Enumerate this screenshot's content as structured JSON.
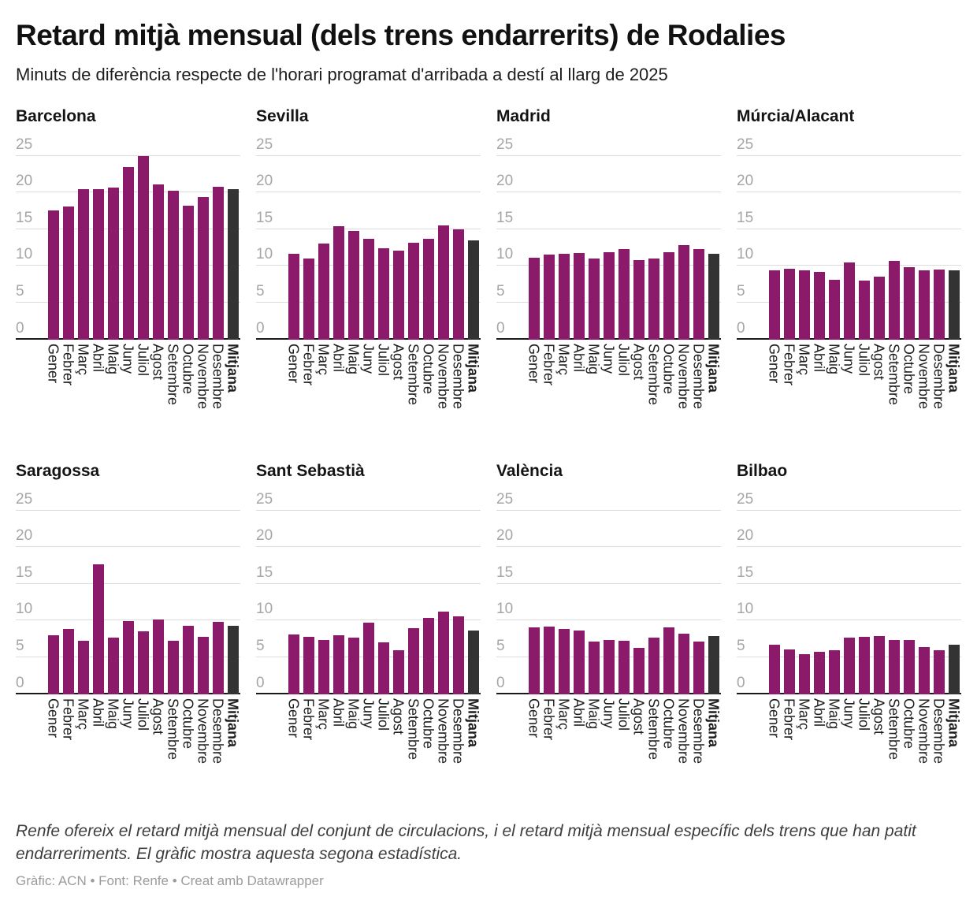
{
  "header": {
    "title": "Retard mitjà mensual (dels trens endarrerits) de Rodalies",
    "subtitle": "Minuts de diferència respecte de l'horari programat d'arribada a destí al llarg de 2025"
  },
  "chart_data": {
    "type": "bar",
    "layout": "small-multiples-2x4",
    "categories": [
      "Gener",
      "Febrer",
      "Març",
      "Abril",
      "Maig",
      "Juny",
      "Juliol",
      "Agost",
      "Setembre",
      "Octubre",
      "Novembre",
      "Desembre",
      "Mitjana"
    ],
    "ylim": [
      0,
      25
    ],
    "yticks": [
      0,
      5,
      10,
      15,
      20,
      25
    ],
    "grid": "horizontal",
    "legend": "none",
    "colors": {
      "bar": "#8c1a6a",
      "average_bar": "#333333",
      "gridline": "#dcdcdc",
      "baseline": "#1a1a1a",
      "ytick_label": "#a6a6a6"
    },
    "panels": [
      {
        "title": "Barcelona",
        "slug": "barcelona",
        "values": [
          17.6,
          18.1,
          20.5,
          20.5,
          20.7,
          23.5,
          24.9,
          21.1,
          20.2,
          18.2,
          19.4,
          20.8,
          20.4
        ]
      },
      {
        "title": "Sevilla",
        "slug": "sevilla",
        "values": [
          11.6,
          11.0,
          13.0,
          15.4,
          14.8,
          13.7,
          12.4,
          12.1,
          13.1,
          13.7,
          15.5,
          15.0,
          13.5
        ]
      },
      {
        "title": "Madrid",
        "slug": "madrid",
        "values": [
          11.1,
          11.5,
          11.6,
          11.8,
          11.0,
          11.9,
          12.3,
          10.8,
          11.0,
          11.9,
          12.8,
          12.3,
          11.7
        ]
      },
      {
        "title": "Múrcia/Alacant",
        "slug": "murcia-alacant",
        "values": [
          9.4,
          9.6,
          9.4,
          9.2,
          8.1,
          10.5,
          8.0,
          8.5,
          10.7,
          9.8,
          9.4,
          9.5,
          9.4
        ]
      },
      {
        "title": "Saragossa",
        "slug": "saragossa",
        "values": [
          8.0,
          8.9,
          7.3,
          17.7,
          7.7,
          9.9,
          8.5,
          10.1,
          7.2,
          9.3,
          7.8,
          9.8,
          9.3
        ]
      },
      {
        "title": "Sant Sebastià",
        "slug": "sant-sebastia",
        "values": [
          8.1,
          7.8,
          7.4,
          8.0,
          7.7,
          9.7,
          7.0,
          6.0,
          9.0,
          10.4,
          11.2,
          10.6,
          8.6
        ]
      },
      {
        "title": "València",
        "slug": "valencia",
        "values": [
          9.1,
          9.2,
          8.9,
          8.6,
          7.1,
          7.4,
          7.2,
          6.3,
          7.7,
          9.1,
          8.2,
          7.1,
          7.9
        ]
      },
      {
        "title": "Bilbao",
        "slug": "bilbao",
        "values": [
          6.7,
          6.1,
          5.4,
          5.8,
          6.0,
          7.7,
          7.8,
          7.9,
          7.4,
          7.4,
          6.4,
          6.0,
          6.7
        ]
      }
    ]
  },
  "footer": {
    "note": "Renfe ofereix el retard mitjà mensual del conjunt de circulacions, i el retard mitjà mensual específic dels trens que han patit endarreriments. El gràfic mostra aquesta segona estadística.",
    "credit": "Gràfic: ACN • Font: Renfe • Creat amb Datawrapper"
  }
}
